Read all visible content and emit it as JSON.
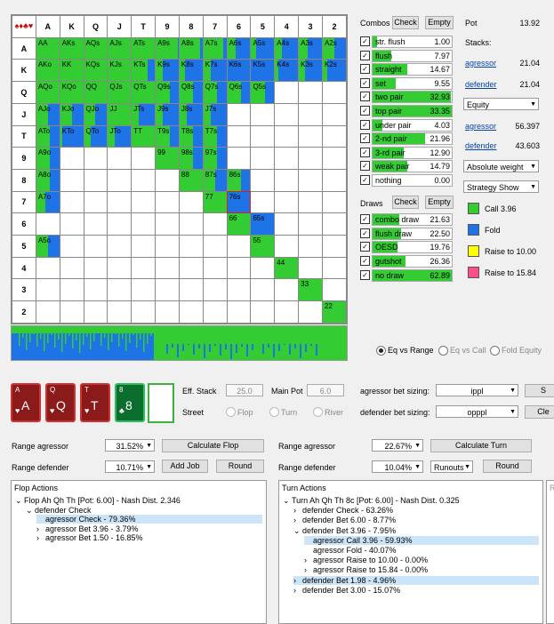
{
  "grid": {
    "col_headers": [
      "A",
      "K",
      "Q",
      "J",
      "T",
      "9",
      "8",
      "7",
      "6",
      "5",
      "4",
      "3",
      "2"
    ],
    "row_headers": [
      "A",
      "K",
      "Q",
      "J",
      "T",
      "9",
      "8",
      "7",
      "6",
      "5",
      "4",
      "3",
      "2"
    ],
    "corner_suits": "♠♦♣♥",
    "rows": [
      [
        {
          "t": "AA",
          "g": 1
        },
        {
          "t": "AKs",
          "g": 1
        },
        {
          "t": "AQs",
          "g": 1
        },
        {
          "t": "AJs",
          "g": 1
        },
        {
          "t": "ATs",
          "g": 1
        },
        {
          "t": "A9s",
          "g": 0.95
        },
        {
          "t": "A8s",
          "g": 0.9
        },
        {
          "t": "A7s",
          "g": 0.85
        },
        {
          "t": "A6s",
          "g": 0.35
        },
        {
          "t": "A5s",
          "g": 0.2
        },
        {
          "t": "A4s",
          "g": 0.3
        },
        {
          "t": "A3s",
          "g": 0.4
        },
        {
          "t": "A2s",
          "g": 0.5
        }
      ],
      [
        {
          "t": "AKo",
          "g": 1
        },
        {
          "t": "KK",
          "g": 1
        },
        {
          "t": "KQs",
          "g": 1
        },
        {
          "t": "KJs",
          "g": 1
        },
        {
          "t": "KTs",
          "g": 0.7
        },
        {
          "t": "K9s",
          "g": 0.3
        },
        {
          "t": "K8s",
          "g": 0.25
        },
        {
          "t": "K7s",
          "g": 0.3
        },
        {
          "t": "K6s",
          "g": 0
        },
        {
          "t": "K5s",
          "g": 0
        },
        {
          "t": "K4s",
          "g": 0.15
        },
        {
          "t": "K3s",
          "g": 0.25
        },
        {
          "t": "K2s",
          "g": 0.2
        }
      ],
      [
        {
          "t": "AQo",
          "g": 1
        },
        {
          "t": "KQo",
          "g": 1
        },
        {
          "t": "QQ",
          "g": 1
        },
        {
          "t": "QJs",
          "g": 1
        },
        {
          "t": "QTs",
          "g": 1
        },
        {
          "t": "Q9s",
          "g": 0.6
        },
        {
          "t": "Q8s",
          "g": 0.6
        },
        {
          "t": "Q7s",
          "g": 0.6
        },
        {
          "t": "Q6s",
          "g": 0.6
        },
        {
          "t": "Q5s",
          "g": 0.6
        },
        null,
        null,
        null
      ],
      [
        {
          "t": "AJo",
          "g": 0.5
        },
        {
          "t": "KJo",
          "g": 0.5
        },
        {
          "t": "QJo",
          "g": 0.5
        },
        {
          "t": "JJ",
          "g": 1
        },
        {
          "t": "JTs",
          "g": 0.3
        },
        {
          "t": "J9s",
          "g": 0.3
        },
        {
          "t": "J8s",
          "g": 0.3
        },
        {
          "t": "J7s",
          "g": 0.3
        },
        null,
        null,
        null,
        null,
        null
      ],
      [
        {
          "t": "ATo",
          "g": 0.6
        },
        {
          "t": "KTo",
          "g": 0.1
        },
        {
          "t": "QTo",
          "g": 0.3
        },
        {
          "t": "JTo",
          "g": 0.3
        },
        {
          "t": "TT",
          "g": 1
        },
        {
          "t": "T9s",
          "g": 0.6
        },
        {
          "t": "T8s",
          "g": 0.6
        },
        {
          "t": "T7s",
          "g": 0.6
        },
        null,
        null,
        null,
        null,
        null
      ],
      [
        {
          "t": "A9o",
          "g": 0.6
        },
        null,
        null,
        null,
        null,
        {
          "t": "99",
          "g": 1
        },
        {
          "t": "98s",
          "g": 0.6
        },
        {
          "t": "97s",
          "g": 0.6
        },
        null,
        null,
        null,
        null,
        null
      ],
      [
        {
          "t": "A8o",
          "g": 0.6
        },
        null,
        null,
        null,
        null,
        null,
        {
          "t": "88",
          "g": 1
        },
        {
          "t": "87s",
          "g": 0.5
        },
        {
          "t": "86s",
          "g": 0.6
        },
        null,
        null,
        null,
        null
      ],
      [
        {
          "t": "A7o",
          "g": 0.4
        },
        null,
        null,
        null,
        null,
        null,
        null,
        {
          "t": "77",
          "g": 1
        },
        {
          "t": "76s",
          "g": 0,
          "sel": true
        },
        null,
        null,
        null,
        null
      ],
      [
        null,
        null,
        null,
        null,
        null,
        null,
        null,
        null,
        {
          "t": "66",
          "g": 1
        },
        {
          "t": "65s",
          "g": 0
        },
        null,
        null,
        null
      ],
      [
        {
          "t": "A5o",
          "g": 0.5
        },
        null,
        null,
        null,
        null,
        null,
        null,
        null,
        null,
        {
          "t": "55",
          "g": 1
        },
        null,
        null,
        null
      ],
      [
        null,
        null,
        null,
        null,
        null,
        null,
        null,
        null,
        null,
        null,
        {
          "t": "44",
          "g": 1
        },
        null,
        null
      ],
      [
        null,
        null,
        null,
        null,
        null,
        null,
        null,
        null,
        null,
        null,
        null,
        {
          "t": "33",
          "g": 1
        },
        null
      ],
      [
        null,
        null,
        null,
        null,
        null,
        null,
        null,
        null,
        null,
        null,
        null,
        null,
        {
          "t": "22",
          "g": 1
        }
      ]
    ]
  },
  "combos": {
    "title": "Combos",
    "check_label": "Check",
    "empty_label": "Empty",
    "items": [
      {
        "label": "str. flush",
        "value": "1.00",
        "pct": 0.06
      },
      {
        "label": "flush",
        "value": "7.97",
        "pct": 0.24
      },
      {
        "label": "straight",
        "value": "14.67",
        "pct": 0.44
      },
      {
        "label": "set",
        "value": "9.55",
        "pct": 0.29
      },
      {
        "label": "two pair",
        "value": "32.93",
        "pct": 0.99
      },
      {
        "label": "top pair",
        "value": "33.35",
        "pct": 1.0
      },
      {
        "label": "under pair",
        "value": "4.03",
        "pct": 0.12
      },
      {
        "label": "2-nd pair",
        "value": "21.96",
        "pct": 0.66
      },
      {
        "label": "3-rd pair",
        "value": "12.90",
        "pct": 0.39
      },
      {
        "label": "weak pair",
        "value": "14.79",
        "pct": 0.44
      },
      {
        "label": "nothing",
        "value": "0.00",
        "pct": 0
      }
    ]
  },
  "draws": {
    "title": "Draws",
    "check_label": "Check",
    "empty_label": "Empty",
    "items": [
      {
        "label": "combo draw",
        "value": "21.63",
        "pct": 0.34
      },
      {
        "label": "flush draw",
        "value": "22.50",
        "pct": 0.36
      },
      {
        "label": "OESD",
        "value": "19.76",
        "pct": 0.31
      },
      {
        "label": "gutshot",
        "value": "26.36",
        "pct": 0.42
      },
      {
        "label": "no draw",
        "value": "62.89",
        "pct": 1.0
      }
    ]
  },
  "info": {
    "pot_label": "Pot",
    "pot_value": "13.92",
    "stacks_label": "Stacks:",
    "agressor_label": "agressor",
    "agressor_stack": "21.04",
    "defender_label": "defender",
    "defender_stack": "21.04",
    "equity_select": "Equity",
    "agressor_equity": "56.397",
    "defender_equity": "43.603",
    "weight_select": "Absolute weight",
    "strategy_select": "Strategy Show"
  },
  "legend": [
    {
      "label": "Call 3.96",
      "color": "#33cc33"
    },
    {
      "label": "Fold",
      "color": "#1e73e6"
    },
    {
      "label": "Raise to 10.00",
      "color": "#ffff00"
    },
    {
      "label": "Raise to 15.84",
      "color": "#ff4d88"
    }
  ],
  "equity_mode": {
    "options": [
      "Eq vs Range",
      "Eq vs Call",
      "Fold Equity"
    ],
    "selected": "Eq vs Range"
  },
  "board": {
    "cards": [
      {
        "rank": "A",
        "suit": "♥",
        "color": "#8b1a1a"
      },
      {
        "rank": "Q",
        "suit": "♥",
        "color": "#8b1a1a"
      },
      {
        "rank": "T",
        "suit": "♥",
        "color": "#8b1a1a"
      },
      {
        "rank": "8",
        "suit": "♣",
        "color": "#0b6e2e"
      }
    ]
  },
  "street": {
    "eff_stack_label": "Eff. Stack",
    "eff_stack_value": "25.0",
    "main_pot_label": "Main Pot",
    "main_pot_value": "6.0",
    "street_label": "Street",
    "options": [
      "Flop",
      "Turn",
      "River"
    ]
  },
  "bet_sizing": {
    "agressor_label": "agressor bet sizing:",
    "agressor_value": "ippl",
    "defender_label": "defender bet sizing:",
    "defender_value": "opppl",
    "btn1": "S",
    "btn2": "Cle"
  },
  "left_controls": {
    "range_agressor_label": "Range agressor",
    "range_agressor_value": "31.52%",
    "calc_label": "Calculate Flop",
    "range_defender_label": "Range defender",
    "range_defender_value": "10.71%",
    "add_job_label": "Add Job",
    "round_label": "Round"
  },
  "right_controls": {
    "range_agressor_label": "Range agressor",
    "range_agressor_value": "22.67%",
    "calc_label": "Calculate Turn",
    "range_defender_label": "Range defender",
    "range_defender_value": "10.04%",
    "runouts_label": "Runouts",
    "round_label": "Round"
  },
  "flop_tree": {
    "title": "Flop Actions",
    "nodes": [
      {
        "text": "Flop Ah Qh Th [Pot: 6.00] - Nash Dist. 2.346",
        "arrow": "⌄",
        "indent": 0,
        "hl": false
      },
      {
        "text": "defender Check",
        "arrow": "⌄",
        "indent": 1,
        "hl": false
      },
      {
        "text": "agressor Check - 79.36%",
        "arrow": "",
        "indent": 2,
        "hl": true
      },
      {
        "text": "agressor Bet 3.96 - 3.79%",
        "arrow": "›",
        "indent": 2,
        "hl": false
      },
      {
        "text": "agressor Bet 1.50 - 16.85%",
        "arrow": "›",
        "indent": 2,
        "hl": false
      }
    ]
  },
  "turn_tree": {
    "title": "Turn Actions",
    "nodes": [
      {
        "text": "Turn Ah Qh Th 8c [Pot: 6.00] - Nash Dist. 0.325",
        "arrow": "⌄",
        "indent": 0,
        "hl": false
      },
      {
        "text": "defender Check - 63.26%",
        "arrow": "›",
        "indent": 1,
        "hl": false
      },
      {
        "text": "defender Bet 6.00 - 8.77%",
        "arrow": "›",
        "indent": 1,
        "hl": false
      },
      {
        "text": "defender Bet 3.96 - 7.95%",
        "arrow": "⌄",
        "indent": 1,
        "hl": false
      },
      {
        "text": "agressor Call 3.96 - 59.93%",
        "arrow": "",
        "indent": 2,
        "hl": true
      },
      {
        "text": "agressor Fold - 40.07%",
        "arrow": "",
        "indent": 2,
        "hl": false
      },
      {
        "text": "agressor Raise to 10.00 - 0.00%",
        "arrow": "›",
        "indent": 2,
        "hl": false
      },
      {
        "text": "agressor Raise to 15.84 - 0.00%",
        "arrow": "›",
        "indent": 2,
        "hl": false
      },
      {
        "text": "defender Bet 1.98 - 4.96%",
        "arrow": "›",
        "indent": 1,
        "hl": true
      },
      {
        "text": "defender Bet 3.00 - 15.07%",
        "arrow": "›",
        "indent": 1,
        "hl": false
      }
    ]
  },
  "river_tree": {
    "title": "R"
  }
}
